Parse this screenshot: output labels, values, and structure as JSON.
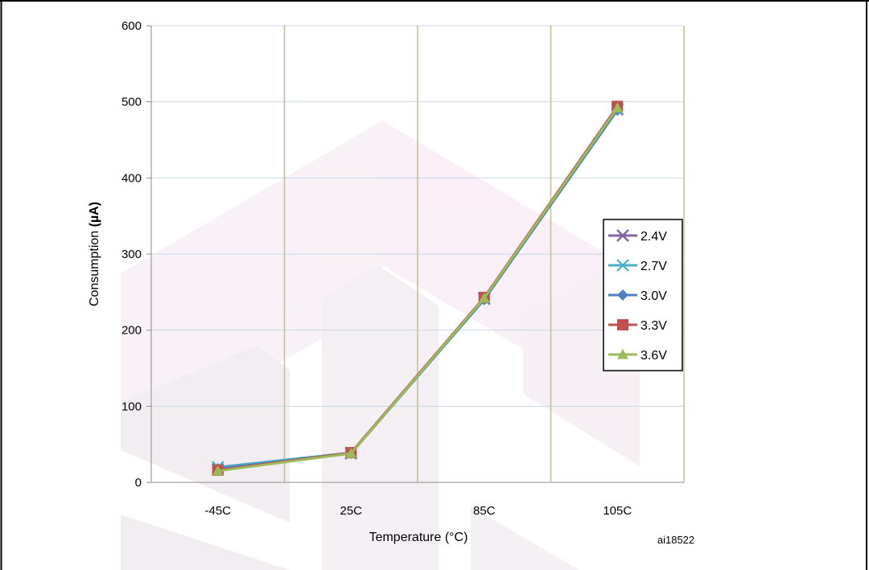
{
  "chart_data": {
    "type": "line",
    "title": "",
    "xlabel": "Temperature (°C)",
    "ylabel_prefix": "Consumption ",
    "ylabel_unit": "(µA)",
    "figure_id": "ai18522",
    "categories": [
      "-45C",
      "25C",
      "85C",
      "105C"
    ],
    "ylim": [
      0,
      600
    ],
    "yticks": [
      0,
      100,
      200,
      300,
      400,
      500,
      600
    ],
    "grid": true,
    "legend_position": "right",
    "series": [
      {
        "name": "2.4V",
        "color": "#8064a2",
        "marker": "x",
        "values": [
          17,
          38,
          241,
          490
        ]
      },
      {
        "name": "2.7V",
        "color": "#4bacc6",
        "marker": "asterisk",
        "values": [
          20,
          39,
          242,
          491
        ]
      },
      {
        "name": "3.0V",
        "color": "#4f81bd",
        "marker": "diamond",
        "values": [
          18,
          38,
          240,
          489
        ]
      },
      {
        "name": "3.3V",
        "color": "#c0504d",
        "marker": "square",
        "values": [
          16,
          39,
          243,
          494
        ]
      },
      {
        "name": "3.6V",
        "color": "#9bbb59",
        "marker": "triangle",
        "values": [
          15,
          38,
          242,
          492
        ]
      }
    ]
  }
}
